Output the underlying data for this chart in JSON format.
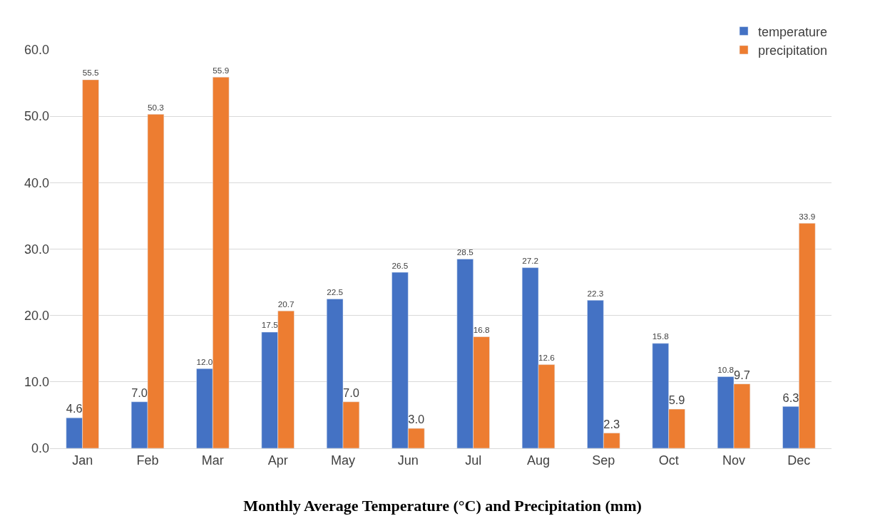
{
  "chart_data": {
    "type": "bar",
    "title": "Monthly Average Temperature (°C) and Precipitation (mm)",
    "categories": [
      "Jan",
      "Feb",
      "Mar",
      "Apr",
      "May",
      "Jun",
      "Jul",
      "Aug",
      "Sep",
      "Oct",
      "Nov",
      "Dec"
    ],
    "series": [
      {
        "name": "temperature",
        "color": "#4472c4",
        "values": [
          4.6,
          7.0,
          12.0,
          17.5,
          22.5,
          26.5,
          28.5,
          27.2,
          22.3,
          15.8,
          10.8,
          6.3
        ],
        "value_labels": [
          "4.6",
          "7.0",
          "12.0",
          "17.5",
          "22.5",
          "26.5",
          "28.5",
          "27.2",
          "22.3",
          "15.8",
          "10.8",
          "6.3"
        ]
      },
      {
        "name": "precipitation",
        "color": "#ed7d31",
        "values": [
          55.5,
          50.3,
          55.9,
          20.7,
          7.0,
          3.0,
          16.8,
          12.6,
          2.3,
          5.9,
          9.7,
          33.9
        ],
        "value_labels": [
          "55.5",
          "50.3",
          "55.9",
          "20.7",
          "7.0",
          "3.0",
          "16.8",
          "12.6",
          "2.3",
          "5.9",
          "9.7",
          "33.9"
        ]
      }
    ],
    "ylim": [
      0,
      60
    ],
    "yticks": [
      {
        "value": 0,
        "label": "0.0"
      },
      {
        "value": 10,
        "label": "10.0"
      },
      {
        "value": 20,
        "label": "20.0"
      },
      {
        "value": 30,
        "label": "30.0"
      },
      {
        "value": 40,
        "label": "40.0"
      },
      {
        "value": 50,
        "label": "50.0"
      },
      {
        "value": 60,
        "label": "60.0"
      }
    ],
    "grid": "y",
    "legend": "top right"
  }
}
